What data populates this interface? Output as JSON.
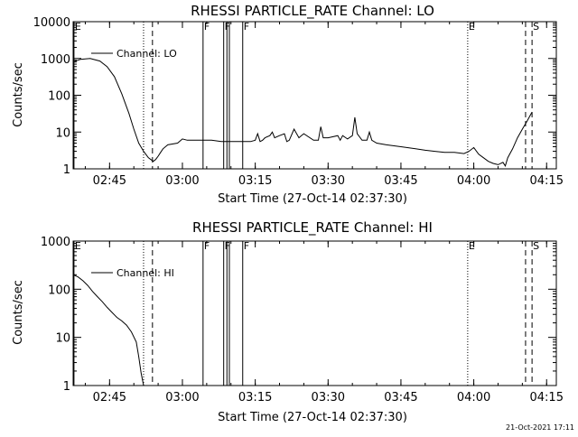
{
  "timestamp": "21-Oct-2021 17:11",
  "chart_data": [
    {
      "type": "line",
      "title": "RHESSI PARTICLE_RATE Channel: LO",
      "xlabel": "Start Time (27-Oct-14 02:37:30)",
      "ylabel": "Counts/sec",
      "yscale": "log",
      "ylim": [
        1,
        10000
      ],
      "xlim": [
        "02:37:30",
        "04:17:00"
      ],
      "x_ticks": [
        "02:45",
        "03:00",
        "03:15",
        "03:30",
        "03:45",
        "04:00",
        "04:15"
      ],
      "y_ticks": [
        "1",
        "10",
        "100",
        "1000",
        "10000"
      ],
      "legend": {
        "position": "top-left",
        "entries": [
          "Channel: LO"
        ]
      },
      "markers": [
        {
          "label": "E",
          "time": "02:37:40",
          "style": "solid"
        },
        {
          "label": "",
          "time": "02:52:00",
          "style": "dotted"
        },
        {
          "label": "",
          "time": "02:53:50",
          "style": "dashed"
        },
        {
          "label": "F",
          "time": "03:04:15",
          "style": "solid"
        },
        {
          "label": "F",
          "time": "03:08:30",
          "style": "solid"
        },
        {
          "label": "",
          "time": "03:09:10",
          "style": "solid"
        },
        {
          "label": "",
          "time": "03:09:40",
          "style": "solid"
        },
        {
          "label": "F",
          "time": "03:12:25",
          "style": "solid"
        },
        {
          "label": "E",
          "time": "03:58:45",
          "style": "dotted"
        },
        {
          "label": "",
          "time": "04:10:40",
          "style": "dashed"
        },
        {
          "label": "S",
          "time": "04:12:00",
          "style": "dashed"
        }
      ],
      "series": [
        {
          "name": "Channel: LO",
          "x": [
            "02:37:30",
            "02:39:00",
            "02:41:00",
            "02:43:00",
            "02:44:30",
            "02:46:00",
            "02:47:30",
            "02:49:00",
            "02:50:00",
            "02:51:00",
            "02:52:00",
            "02:53:00",
            "02:54:00",
            "02:54:30",
            "02:55:00",
            "02:55:30",
            "02:56:00",
            "02:57:00",
            "02:59:00",
            "03:00:00",
            "03:01:00",
            "03:02:00",
            "03:04:00",
            "03:06:00",
            "03:08:00",
            "03:10:00",
            "03:12:00",
            "03:14:00",
            "03:15:00",
            "03:15:30",
            "03:16:00",
            "03:16:30",
            "03:17:00",
            "03:18:00",
            "03:18:30",
            "03:19:00",
            "03:20:00",
            "03:21:00",
            "03:21:30",
            "03:22:00",
            "03:23:00",
            "03:24:00",
            "03:24:30",
            "03:25:00",
            "03:27:00",
            "03:28:00",
            "03:28:30",
            "03:29:00",
            "03:30:00",
            "03:32:00",
            "03:32:30",
            "03:33:00",
            "03:34:00",
            "03:35:00",
            "03:35:30",
            "03:36:00",
            "03:37:00",
            "03:38:00",
            "03:38:30",
            "03:39:00",
            "03:40:00",
            "03:42:00",
            "03:45:00",
            "03:48:00",
            "03:50:00",
            "03:52:00",
            "03:54:00",
            "03:56:00",
            "03:58:00",
            "03:59:00",
            "04:00:00",
            "04:01:00",
            "04:02:00",
            "04:03:00",
            "04:04:00",
            "04:05:00",
            "04:06:00",
            "04:06:30",
            "04:07:00",
            "04:08:00",
            "04:09:00",
            "04:10:00",
            "04:11:00",
            "04:12:00"
          ],
          "y": [
            800,
            950,
            1000,
            850,
            600,
            320,
            110,
            32,
            12,
            5,
            3,
            2,
            1.6,
            1.8,
            2.2,
            2.8,
            3.5,
            4.5,
            5,
            6.5,
            6,
            6,
            6,
            6,
            5.5,
            5.5,
            5.5,
            5.5,
            6,
            9,
            5.5,
            6,
            7,
            8,
            10,
            7,
            8,
            9,
            5.5,
            6,
            12,
            7,
            8,
            9,
            6,
            6,
            14,
            7,
            7,
            8,
            6,
            8,
            6.5,
            8,
            25,
            9,
            6,
            6,
            10,
            6,
            5,
            4.5,
            4,
            3.5,
            3.2,
            3,
            2.8,
            2.8,
            2.6,
            3,
            3.8,
            2.5,
            2,
            1.6,
            1.4,
            1.3,
            1.5,
            1.2,
            2,
            3.5,
            7,
            12,
            20,
            35
          ]
        }
      ]
    },
    {
      "type": "line",
      "title": "RHESSI PARTICLE_RATE Channel: HI",
      "xlabel": "Start Time (27-Oct-14 02:37:30)",
      "ylabel": "Counts/sec",
      "yscale": "log",
      "ylim": [
        1,
        1000
      ],
      "xlim": [
        "02:37:30",
        "04:17:00"
      ],
      "x_ticks": [
        "02:45",
        "03:00",
        "03:15",
        "03:30",
        "03:45",
        "04:00",
        "04:15"
      ],
      "y_ticks": [
        "1",
        "10",
        "100",
        "1000"
      ],
      "legend": {
        "position": "top-left",
        "entries": [
          "Channel: HI"
        ]
      },
      "markers": [
        {
          "label": "E",
          "time": "02:37:40",
          "style": "solid"
        },
        {
          "label": "",
          "time": "02:52:00",
          "style": "dotted"
        },
        {
          "label": "",
          "time": "02:53:50",
          "style": "dashed"
        },
        {
          "label": "F",
          "time": "03:04:15",
          "style": "solid"
        },
        {
          "label": "F",
          "time": "03:08:30",
          "style": "solid"
        },
        {
          "label": "",
          "time": "03:09:10",
          "style": "solid"
        },
        {
          "label": "",
          "time": "03:09:40",
          "style": "solid"
        },
        {
          "label": "F",
          "time": "03:12:25",
          "style": "solid"
        },
        {
          "label": "E",
          "time": "03:58:45",
          "style": "dotted"
        },
        {
          "label": "",
          "time": "04:10:40",
          "style": "dashed"
        },
        {
          "label": "S",
          "time": "04:12:00",
          "style": "dashed"
        }
      ],
      "series": [
        {
          "name": "Channel: HI",
          "x": [
            "02:37:30",
            "02:38:30",
            "02:39:30",
            "02:40:30",
            "02:41:30",
            "02:42:30",
            "02:43:30",
            "02:44:30",
            "02:45:30",
            "02:46:30",
            "02:47:30",
            "02:48:30",
            "02:49:30",
            "02:50:30",
            "02:51:00",
            "02:51:30",
            "02:52:00"
          ],
          "y": [
            200,
            180,
            150,
            120,
            90,
            70,
            55,
            42,
            33,
            26,
            22,
            18,
            13,
            8,
            4,
            1.8,
            1
          ]
        }
      ]
    }
  ]
}
